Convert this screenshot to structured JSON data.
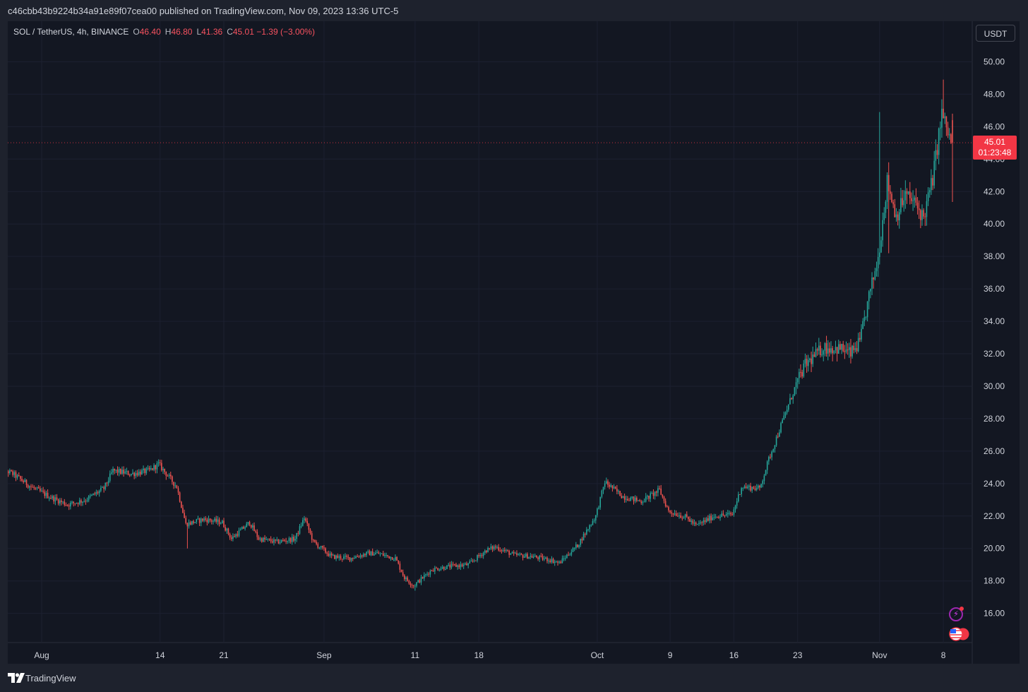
{
  "header": {
    "published_text": "c46cbb43b9224b34a91e89f07cea00 published on TradingView.com, Nov 09, 2023 13:36 UTC-5"
  },
  "legend": {
    "symbol": "SOL / TetherUS, 4h, BINANCE",
    "o_label": "O",
    "o_value": "46.40",
    "h_label": "H",
    "h_value": "46.80",
    "l_label": "L",
    "l_value": "41.36",
    "c_label": "C",
    "c_value": "45.01",
    "change": "−1.39 (−3.00%)"
  },
  "price_axis": {
    "unit_button": "USDT",
    "ticks": [
      "50.00",
      "48.00",
      "46.00",
      "44.00",
      "42.00",
      "40.00",
      "38.00",
      "36.00",
      "34.00",
      "32.00",
      "30.00",
      "28.00",
      "26.00",
      "24.00",
      "22.00",
      "20.00",
      "18.00",
      "16.00"
    ]
  },
  "time_axis": {
    "ticks": [
      "Aug",
      "14",
      "21",
      "Sep",
      "11",
      "18",
      "Oct",
      "9",
      "16",
      "23",
      "Nov",
      "8"
    ]
  },
  "last_price": {
    "price": "45.01",
    "countdown": "01:23:48"
  },
  "footer": {
    "brand": "TradingView"
  },
  "colors": {
    "up": "#26a69a",
    "down": "#ef5350",
    "price_badge": "#f23645",
    "panel_bg": "#131722",
    "page_bg": "#1e222d"
  },
  "icons": {
    "alert": "lightning-icon",
    "flag": "us-flag-icon",
    "logo": "tradingview-logo-icon"
  },
  "chart_data": {
    "type": "candlestick",
    "symbol": "SOL / TetherUS",
    "interval": "4h",
    "exchange": "BINANCE",
    "ylim": [
      14.2,
      52.5
    ],
    "grid": true,
    "last": {
      "open": 46.4,
      "high": 46.8,
      "low": 41.36,
      "close": 45.01,
      "change": -1.39,
      "change_pct": -3.0
    },
    "price_path": [
      {
        "date": "2023-07-27",
        "close": 25.1
      },
      {
        "date": "2023-07-29",
        "close": 24.6
      },
      {
        "date": "2023-07-31",
        "close": 23.8
      },
      {
        "date": "2023-08-02",
        "close": 23.2
      },
      {
        "date": "2023-08-04",
        "close": 22.7
      },
      {
        "date": "2023-08-06",
        "close": 23.0
      },
      {
        "date": "2023-08-08",
        "close": 23.7
      },
      {
        "date": "2023-08-09",
        "close": 24.8
      },
      {
        "date": "2023-08-11",
        "close": 24.6
      },
      {
        "date": "2023-08-13",
        "close": 24.8
      },
      {
        "date": "2023-08-14",
        "close": 25.2
      },
      {
        "date": "2023-08-16",
        "close": 23.8
      },
      {
        "date": "2023-08-17",
        "close": 21.5
      },
      {
        "date": "2023-08-19",
        "close": 21.8
      },
      {
        "date": "2023-08-21",
        "close": 21.6
      },
      {
        "date": "2023-08-22",
        "close": 20.6
      },
      {
        "date": "2023-08-24",
        "close": 21.6
      },
      {
        "date": "2023-08-25",
        "close": 20.6
      },
      {
        "date": "2023-08-27",
        "close": 20.4
      },
      {
        "date": "2023-08-29",
        "close": 20.6
      },
      {
        "date": "2023-08-30",
        "close": 21.9
      },
      {
        "date": "2023-08-31",
        "close": 20.4
      },
      {
        "date": "2023-09-02",
        "close": 19.5
      },
      {
        "date": "2023-09-04",
        "close": 19.4
      },
      {
        "date": "2023-09-06",
        "close": 19.7
      },
      {
        "date": "2023-09-07",
        "close": 19.7
      },
      {
        "date": "2023-09-09",
        "close": 19.4
      },
      {
        "date": "2023-09-10",
        "close": 18.2
      },
      {
        "date": "2023-09-11",
        "close": 17.7
      },
      {
        "date": "2023-09-13",
        "close": 18.7
      },
      {
        "date": "2023-09-15",
        "close": 18.9
      },
      {
        "date": "2023-09-17",
        "close": 19.0
      },
      {
        "date": "2023-09-19",
        "close": 19.9
      },
      {
        "date": "2023-09-20",
        "close": 20.1
      },
      {
        "date": "2023-09-22",
        "close": 19.6
      },
      {
        "date": "2023-09-24",
        "close": 19.5
      },
      {
        "date": "2023-09-26",
        "close": 19.3
      },
      {
        "date": "2023-09-27",
        "close": 19.1
      },
      {
        "date": "2023-09-29",
        "close": 20.2
      },
      {
        "date": "2023-10-01",
        "close": 22.0
      },
      {
        "date": "2023-10-02",
        "close": 24.1
      },
      {
        "date": "2023-10-04",
        "close": 23.2
      },
      {
        "date": "2023-10-06",
        "close": 22.9
      },
      {
        "date": "2023-10-08",
        "close": 23.6
      },
      {
        "date": "2023-10-09",
        "close": 22.3
      },
      {
        "date": "2023-10-11",
        "close": 21.9
      },
      {
        "date": "2023-10-12",
        "close": 21.4
      },
      {
        "date": "2023-10-14",
        "close": 22.0
      },
      {
        "date": "2023-10-16",
        "close": 22.1
      },
      {
        "date": "2023-10-17",
        "close": 23.8
      },
      {
        "date": "2023-10-19",
        "close": 23.7
      },
      {
        "date": "2023-10-20",
        "close": 25.5
      },
      {
        "date": "2023-10-22",
        "close": 28.6
      },
      {
        "date": "2023-10-23",
        "close": 30.1
      },
      {
        "date": "2023-10-24",
        "close": 31.3
      },
      {
        "date": "2023-10-26",
        "close": 32.4
      },
      {
        "date": "2023-10-28",
        "close": 32.3
      },
      {
        "date": "2023-10-29",
        "close": 32.0
      },
      {
        "date": "2023-10-30",
        "close": 32.7
      },
      {
        "date": "2023-10-31",
        "close": 35.5
      },
      {
        "date": "2023-11-01",
        "close": 37.9
      },
      {
        "date": "2023-11-02",
        "close": 42.6
      },
      {
        "date": "2023-11-03",
        "close": 40.5
      },
      {
        "date": "2023-11-04",
        "close": 41.8
      },
      {
        "date": "2023-11-05",
        "close": 41.3
      },
      {
        "date": "2023-11-06",
        "close": 40.4
      },
      {
        "date": "2023-11-07",
        "close": 42.8
      },
      {
        "date": "2023-11-08",
        "close": 46.8
      },
      {
        "date": "2023-11-09",
        "close": 45.01
      }
    ]
  }
}
